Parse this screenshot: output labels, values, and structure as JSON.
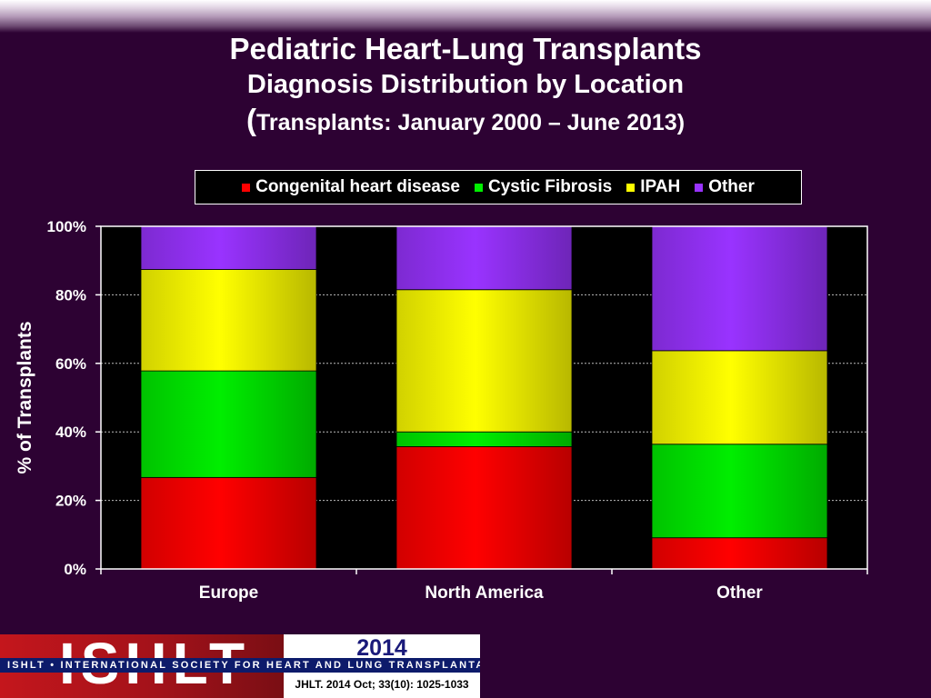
{
  "header": {
    "title": "Pediatric Heart-Lung Transplants",
    "subtitle": "Diagnosis Distribution by Location",
    "date_range_open": "(",
    "date_range": "Transplants: January 2000 – June 2013)"
  },
  "chart_data": {
    "type": "bar",
    "stacked": true,
    "categories": [
      "Europe",
      "North America",
      "Other"
    ],
    "series": [
      {
        "name": "Congenital heart disease",
        "color": "#ff0000",
        "values": [
          26.7,
          35.7,
          9.1
        ]
      },
      {
        "name": "Cystic Fibrosis",
        "color": "#00ee00",
        "values": [
          31.1,
          4.3,
          27.3
        ]
      },
      {
        "name": "IPAH",
        "color": "#ffff00",
        "values": [
          29.6,
          41.5,
          27.3
        ]
      },
      {
        "name": "Other",
        "color": "#9933ff",
        "values": [
          12.6,
          18.5,
          36.3
        ]
      }
    ],
    "ylabel": "% of Transplants",
    "ylim": [
      0,
      100
    ],
    "yticks": [
      "0%",
      "20%",
      "40%",
      "60%",
      "80%",
      "100%"
    ],
    "grid": true,
    "legend_position": "top"
  },
  "footer": {
    "logo_text": "ISHLT",
    "year": "2014",
    "society": "ISHLT • INTERNATIONAL SOCIETY FOR HEART AND LUNG TRANSPLANTATION",
    "citation": "JHLT. 2014 Oct; 33(10): 1025-1033"
  }
}
